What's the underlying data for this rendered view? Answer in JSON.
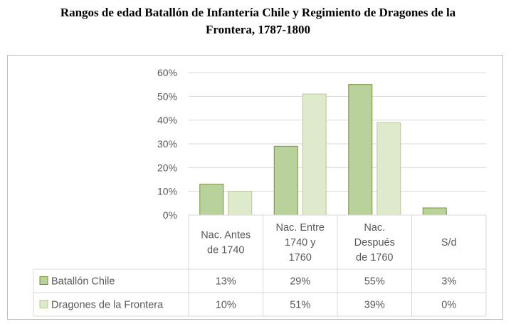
{
  "title_lines": [
    "Rangos de edad Batallón de Infantería Chile y Regimiento de Dragones de la",
    "Frontera, 1787-1800"
  ],
  "chart_data": {
    "type": "bar",
    "title": "Rangos de edad Batallón de Infantería Chile y Regimiento de Dragones de la Frontera, 1787-1800",
    "categories": [
      [
        "Nac. Antes",
        "de 1740"
      ],
      [
        "Nac. Entre",
        "1740 y",
        "1760"
      ],
      [
        "Nac.",
        "Después",
        "de 1760"
      ],
      [
        "S/d"
      ]
    ],
    "series": [
      {
        "name": "Batallón Chile",
        "values": [
          13,
          29,
          55,
          3
        ],
        "labels": [
          "13%",
          "29%",
          "55%",
          "3%"
        ],
        "fill": "#b9d19a",
        "stroke": "#76933c"
      },
      {
        "name": "Dragones de la Frontera",
        "values": [
          10,
          51,
          39,
          0
        ],
        "labels": [
          "10%",
          "51%",
          "39%",
          "0%"
        ],
        "fill": "#dfe9cc",
        "stroke": "#b5cb93"
      }
    ],
    "yticks": [
      "0%",
      "10%",
      "20%",
      "30%",
      "40%",
      "50%",
      "60%"
    ],
    "ylim": [
      0,
      60
    ],
    "grid": true,
    "data_table": true
  }
}
